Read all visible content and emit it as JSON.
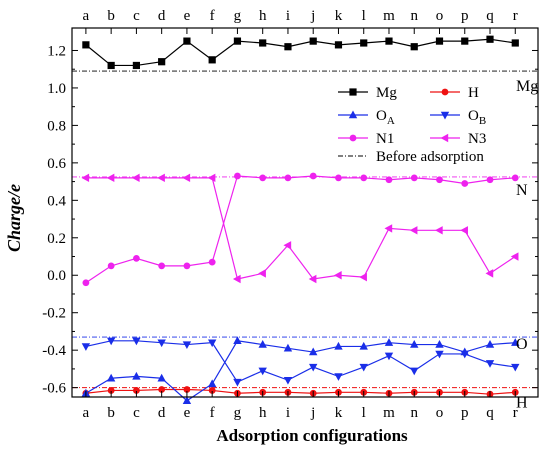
{
  "chart_data": {
    "type": "line",
    "xlabel": "Adsorption configurations",
    "ylabel": "Charge/e",
    "categories": [
      "a",
      "b",
      "c",
      "d",
      "e",
      "f",
      "g",
      "h",
      "i",
      "j",
      "k",
      "l",
      "m",
      "n",
      "o",
      "p",
      "q",
      "r"
    ],
    "ylim": [
      -0.65,
      1.32
    ],
    "yticks": [
      "-0.6",
      "-0.4",
      "-0.2",
      "0.0",
      "0.2",
      "0.4",
      "0.6",
      "0.8",
      "1.0",
      "1.2"
    ],
    "ytick_values": [
      -0.6,
      -0.4,
      -0.2,
      0.0,
      0.2,
      0.4,
      0.6,
      0.8,
      1.0,
      1.2
    ],
    "grid": false,
    "legend_position": "upper-right (inside plot, below Mg baseline)",
    "series": [
      {
        "name": "Mg",
        "label_sub": "",
        "color": "#000000",
        "marker": "square",
        "values": [
          1.23,
          1.12,
          1.12,
          1.14,
          1.25,
          1.15,
          1.25,
          1.24,
          1.22,
          1.25,
          1.23,
          1.24,
          1.25,
          1.22,
          1.25,
          1.25,
          1.26,
          1.24
        ]
      },
      {
        "name": "H",
        "label_sub": "",
        "color": "#ee1111",
        "marker": "circle",
        "values": [
          -0.63,
          -0.615,
          -0.615,
          -0.61,
          -0.61,
          -0.615,
          -0.63,
          -0.625,
          -0.625,
          -0.63,
          -0.625,
          -0.625,
          -0.63,
          -0.625,
          -0.625,
          -0.625,
          -0.635,
          -0.625
        ]
      },
      {
        "name": "O",
        "label_sub": "A",
        "color": "#1a2ee8",
        "marker": "triangle-up",
        "values": [
          -0.63,
          -0.55,
          -0.54,
          -0.55,
          -0.67,
          -0.58,
          -0.35,
          -0.37,
          -0.39,
          -0.41,
          -0.38,
          -0.38,
          -0.36,
          -0.37,
          -0.37,
          -0.41,
          -0.37,
          -0.36
        ]
      },
      {
        "name": "O",
        "label_sub": "B",
        "color": "#1a2ee8",
        "marker": "triangle-down",
        "values": [
          -0.38,
          -0.35,
          -0.35,
          -0.36,
          -0.37,
          -0.36,
          -0.57,
          -0.51,
          -0.56,
          -0.49,
          -0.54,
          -0.49,
          -0.43,
          -0.51,
          -0.42,
          -0.42,
          -0.47,
          -0.49
        ]
      },
      {
        "name": "N1",
        "label_sub": "",
        "color": "#ee22ee",
        "marker": "circle",
        "values": [
          -0.04,
          0.05,
          0.09,
          0.05,
          0.05,
          0.07,
          0.53,
          0.52,
          0.52,
          0.53,
          0.52,
          0.52,
          0.51,
          0.52,
          0.51,
          0.49,
          0.51,
          0.52
        ]
      },
      {
        "name": "N3",
        "label_sub": "",
        "color": "#ee22ee",
        "marker": "triangle-left",
        "values": [
          0.52,
          0.52,
          0.52,
          0.52,
          0.52,
          0.52,
          -0.02,
          0.01,
          0.16,
          -0.02,
          0.0,
          -0.01,
          0.25,
          0.24,
          0.24,
          0.24,
          0.01,
          0.1
        ]
      }
    ],
    "baselines": [
      {
        "name": "Before adsorption",
        "label": "Mg",
        "value": 1.09,
        "color": "#000000"
      },
      {
        "name": "Before adsorption",
        "label": "N",
        "value": 0.525,
        "color": "#ee22ee"
      },
      {
        "name": "Before adsorption",
        "label": "O",
        "value": -0.33,
        "color": "#1a2ee8"
      },
      {
        "name": "Before adsorption",
        "label": "H",
        "value": -0.6,
        "color": "#ee1111"
      }
    ],
    "legend": {
      "entries": [
        {
          "name": "Mg",
          "sub": "",
          "series": 0
        },
        {
          "name": "H",
          "sub": "",
          "series": 1
        },
        {
          "name": "O",
          "sub": "A",
          "series": 2
        },
        {
          "name": "O",
          "sub": "B",
          "series": 3
        },
        {
          "name": "N1",
          "sub": "",
          "series": 4
        },
        {
          "name": "N3",
          "sub": "",
          "series": 5
        }
      ],
      "baseline_label": "Before adsorption"
    }
  }
}
